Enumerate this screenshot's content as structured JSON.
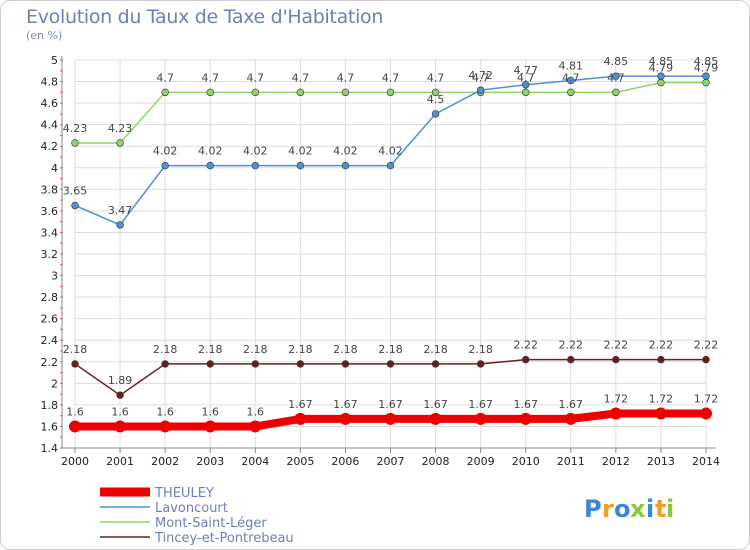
{
  "chart_data": {
    "type": "line",
    "title": "Evolution du Taux de Taxe d'Habitation",
    "subtitle": "(en %)",
    "xlabel": "",
    "ylabel": "",
    "x": [
      "2000",
      "2001",
      "2002",
      "2003",
      "2004",
      "2005",
      "2006",
      "2007",
      "2008",
      "2009",
      "2010",
      "2011",
      "2012",
      "2013",
      "2014"
    ],
    "ylim": [
      1.4,
      5
    ],
    "yticks": [
      "1.4",
      "1.6",
      "1.8",
      "2",
      "2.2",
      "2.4",
      "2.6",
      "2.8",
      "3",
      "3.2",
      "3.4",
      "3.6",
      "3.8",
      "4",
      "4.2",
      "4.4",
      "4.6",
      "4.8",
      "5"
    ],
    "grid": true,
    "legend_placement": "bottom-left",
    "series": [
      {
        "name": "Tincey-et-Pontrebeau",
        "color": "#6b1e1e",
        "values": [
          2.18,
          1.89,
          2.18,
          2.18,
          2.18,
          2.18,
          2.18,
          2.18,
          2.18,
          2.18,
          2.22,
          2.22,
          2.22,
          2.22,
          2.22
        ],
        "labels": [
          "2.18",
          "1.89",
          "2.18",
          "2.18",
          "2.18",
          "2.18",
          "2.18",
          "2.18",
          "2.18",
          "2.18",
          "2.22",
          "2.22",
          "2.22",
          "2.22",
          "2.22"
        ]
      },
      {
        "name": "Mont-Saint-Léger",
        "color": "#8fd468",
        "values": [
          4.23,
          4.23,
          4.7,
          4.7,
          4.7,
          4.7,
          4.7,
          4.7,
          4.7,
          4.7,
          4.7,
          4.7,
          4.7,
          4.79,
          4.79
        ],
        "labels": [
          "4.23",
          "4.23",
          "4.7",
          "4.7",
          "4.7",
          "4.7",
          "4.7",
          "4.7",
          "4.7",
          "4.7",
          "4.7",
          "4.7",
          "4.7",
          "4.79",
          "4.79"
        ]
      },
      {
        "name": "Lavoncourt",
        "color": "#4f8fd6",
        "values": [
          3.65,
          3.47,
          4.02,
          4.02,
          4.02,
          4.02,
          4.02,
          4.02,
          4.5,
          4.72,
          4.77,
          4.81,
          4.85,
          4.85,
          4.85
        ],
        "labels": [
          "3.65",
          "3.47",
          "4.02",
          "4.02",
          "4.02",
          "4.02",
          "4.02",
          "4.02",
          "4.5",
          "4.72",
          "4.77",
          "4.81",
          "4.85",
          "4.85",
          "4.85"
        ]
      },
      {
        "name": "THEULEY",
        "color": "#ee0000",
        "values": [
          1.6,
          1.6,
          1.6,
          1.6,
          1.6,
          1.67,
          1.67,
          1.67,
          1.67,
          1.67,
          1.67,
          1.67,
          1.72,
          1.72,
          1.72
        ],
        "labels": [
          "1.6",
          "1.6",
          "1.6",
          "1.6",
          "1.6",
          "1.67",
          "1.67",
          "1.67",
          "1.67",
          "1.67",
          "1.67",
          "1.67",
          "1.72",
          "1.72",
          "1.72"
        ]
      }
    ],
    "legend": [
      {
        "name": "THEULEY",
        "color": "#ee0000"
      },
      {
        "name": "Lavoncourt",
        "color": "#4f8fd6"
      },
      {
        "name": "Mont-Saint-Léger",
        "color": "#8fd468"
      },
      {
        "name": "Tincey-et-Pontrebeau",
        "color": "#6b1e1e"
      }
    ]
  },
  "brand": {
    "letters": [
      "P",
      "r",
      "o",
      "x",
      "i",
      "t",
      "i"
    ],
    "colors": [
      "#3a86d8",
      "#f0a020",
      "#3a86d8",
      "#8cc63f",
      "#3a86d8",
      "#f0a020",
      "#8cc63f"
    ]
  }
}
